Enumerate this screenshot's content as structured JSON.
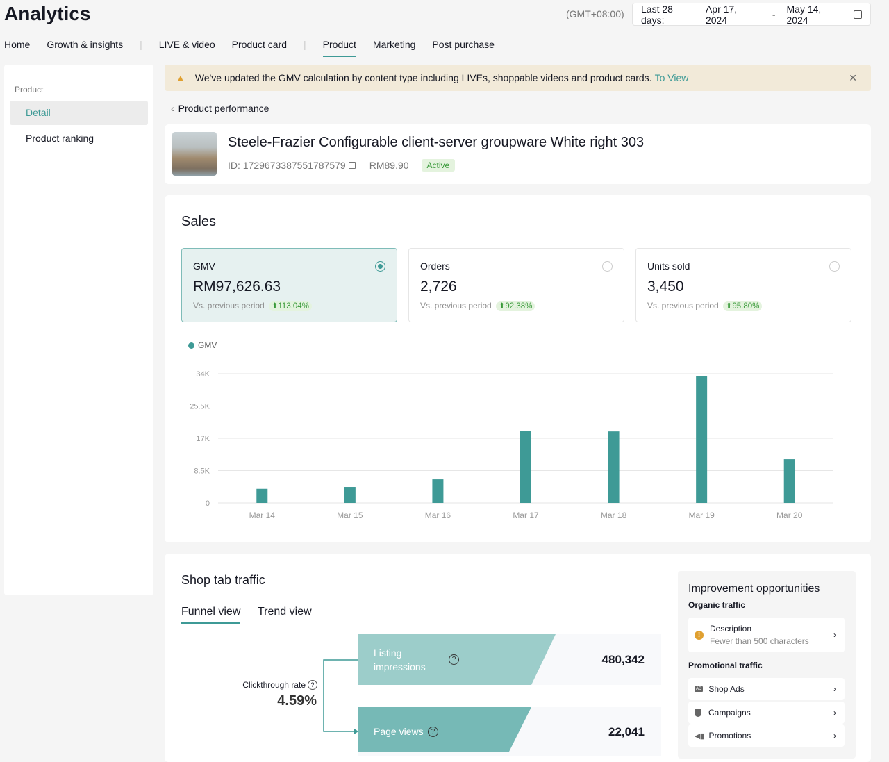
{
  "header": {
    "title": "Analytics",
    "timezone": "(GMT+08:00)",
    "date_label": "Last 28 days:",
    "date_start": "Apr 17, 2024",
    "date_sep": "-",
    "date_end": "May 14, 2024"
  },
  "nav": [
    "Home",
    "Growth & insights",
    "LIVE & video",
    "Product card",
    "Product",
    "Marketing",
    "Post purchase"
  ],
  "sidebar": {
    "section": "Product",
    "items": [
      {
        "label": "Detail",
        "active": true
      },
      {
        "label": "Product ranking"
      }
    ]
  },
  "banner": {
    "text": "We've updated the GMV calculation by content type including LIVEs, shoppable videos and product cards.",
    "link": "To View"
  },
  "breadcrumb": "Product performance",
  "product": {
    "name": "Steele-Frazier Configurable client-server groupware White right 303",
    "id": "ID: 1729673387551787579",
    "price": "RM89.90",
    "status": "Active"
  },
  "sales": {
    "title": "Sales",
    "metrics": [
      {
        "name": "GMV",
        "value": "RM97,626.63",
        "cmp": "Vs. previous period",
        "change": "113.04%",
        "selected": true
      },
      {
        "name": "Orders",
        "value": "2,726",
        "cmp": "Vs. previous period",
        "change": "92.38%"
      },
      {
        "name": "Units sold",
        "value": "3,450",
        "cmp": "Vs. previous period",
        "change": "95.80%"
      }
    ]
  },
  "chart_data": {
    "type": "bar",
    "legend": "GMV",
    "legend_placement": "top-left",
    "categories": [
      "Mar 14",
      "Mar 15",
      "Mar 16",
      "Mar 17",
      "Mar 18",
      "Mar 19",
      "Mar 20"
    ],
    "values": [
      3700,
      4200,
      6200,
      19000,
      18800,
      33300,
      11500
    ],
    "yticks": [
      "0",
      "8.5K",
      "17K",
      "25.5K",
      "34K"
    ],
    "ylim": [
      0,
      34000
    ],
    "grid": true,
    "color": "#3e9a96"
  },
  "traffic": {
    "title": "Shop tab traffic",
    "tabs": [
      "Funnel view",
      "Trend view"
    ],
    "ctr_label": "Clickthrough rate",
    "ctr_value": "4.59%",
    "funnel": [
      {
        "label": "Listing impressions",
        "value": "480,342"
      },
      {
        "label": "Page views",
        "value": "22,041"
      }
    ]
  },
  "improve": {
    "title": "Improvement opportunities",
    "organic": "Organic traffic",
    "desc_title": "Description",
    "desc_sub": "Fewer than 500 characters",
    "promo": "Promotional traffic",
    "promo_items": [
      "Shop Ads",
      "Campaigns",
      "Promotions"
    ]
  }
}
